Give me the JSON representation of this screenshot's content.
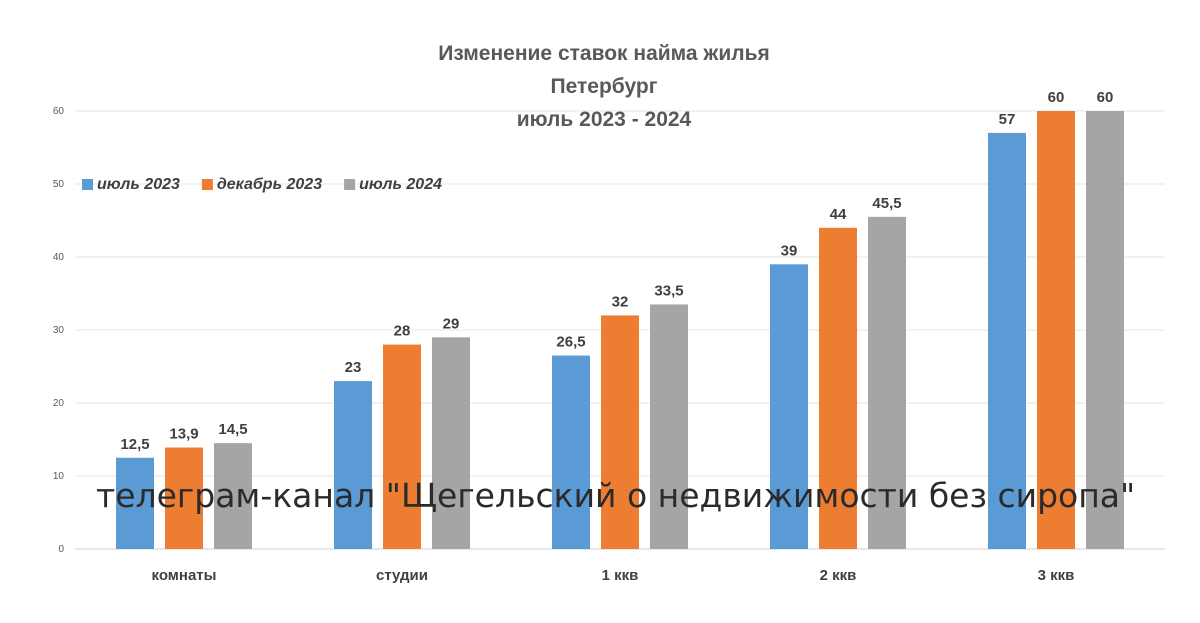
{
  "chart_data": {
    "type": "bar",
    "title_lines": [
      "Изменение ставок найма жилья",
      "Петербург",
      "июль 2023 - 2024"
    ],
    "categories": [
      "комнаты",
      "студии",
      "1 ккв",
      "2 ккв",
      "3 ккв"
    ],
    "series": [
      {
        "name": "июль 2023",
        "color": "#5B9BD5",
        "values": [
          12.5,
          23,
          26.5,
          39,
          57
        ],
        "labels": [
          "12,5",
          "23",
          "26,5",
          "39",
          "57"
        ]
      },
      {
        "name": "декабрь 2023",
        "color": "#ED7D31",
        "values": [
          13.9,
          28,
          32,
          44,
          60
        ],
        "labels": [
          "13,9",
          "28",
          "32",
          "44",
          "60"
        ]
      },
      {
        "name": "июль 2024",
        "color": "#A5A5A5",
        "values": [
          14.5,
          29,
          33.5,
          45.5,
          60
        ],
        "labels": [
          "14,5",
          "29",
          "33,5",
          "45,5",
          "60"
        ]
      }
    ],
    "ylim": [
      0,
      60
    ],
    "yticks": [
      "0",
      "10",
      "20",
      "30",
      "40",
      "50",
      "60"
    ],
    "grid": true,
    "legend_position": "top-left"
  },
  "watermark": "телеграм-канал \"Щегельский о недвижимости без сиропа\""
}
